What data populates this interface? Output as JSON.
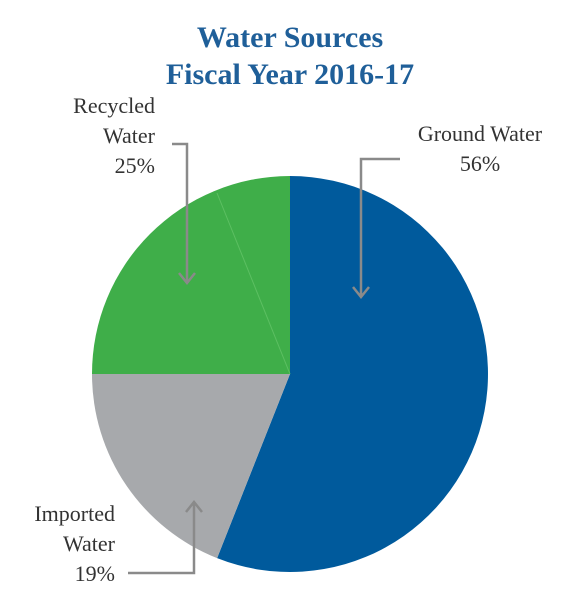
{
  "chart_data": {
    "type": "pie",
    "title": "Water Sources",
    "subtitle": "Fiscal Year 2016-17",
    "slices": [
      {
        "label_lines": [
          "Ground Water",
          "56%"
        ],
        "value": 56,
        "color": "#005a9c"
      },
      {
        "label_lines": [
          "Imported",
          "Water",
          "19%"
        ],
        "value": 19,
        "color": "#a7a9ac"
      },
      {
        "label_lines": [
          "Recycled",
          "Water",
          "25%"
        ],
        "value": 25,
        "color": "#3fae49"
      }
    ]
  }
}
